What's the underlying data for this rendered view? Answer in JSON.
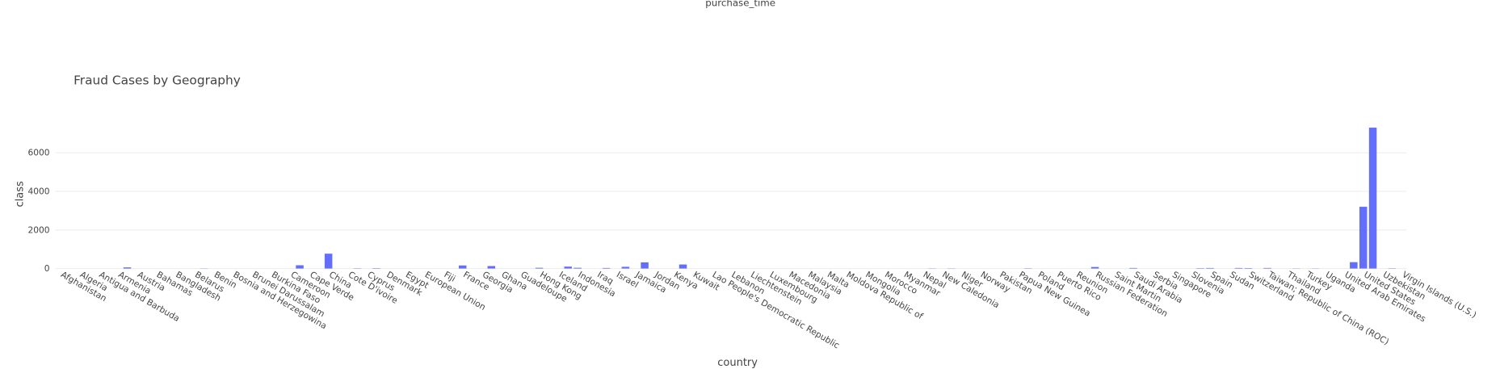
{
  "chart_data": {
    "type": "bar",
    "title": "Fraud Cases by Geography",
    "top_label": "purchase_time",
    "x_label": "country",
    "y_label": "class",
    "color": "#636efa",
    "grid": true,
    "ylim": [
      0,
      7670
    ],
    "yticks": [
      0,
      2000,
      4000,
      6000
    ],
    "categories": [
      "Afghanistan",
      null,
      "Algeria",
      null,
      "Antigua and Barbuda",
      null,
      "Armenia",
      null,
      "Austria",
      null,
      "Bahamas",
      null,
      "Bangladesh",
      null,
      "Belarus",
      null,
      "Benin",
      null,
      "Bosnia and Herzegowina",
      null,
      "Brunei Darussalam",
      null,
      "Burkina Faso",
      null,
      "Cameroon",
      null,
      "Cape Verde",
      null,
      "China",
      null,
      "Cote D'ivoire",
      null,
      "Cyprus",
      null,
      "Denmark",
      null,
      "Egypt",
      null,
      "European Union",
      null,
      "Fiji",
      null,
      "France",
      null,
      "Georgia",
      null,
      "Ghana",
      null,
      "Guadeloupe",
      null,
      "Hong Kong",
      null,
      "Iceland",
      null,
      "Indonesia",
      null,
      "Iraq",
      null,
      "Israel",
      null,
      "Jamaica",
      null,
      "Jordan",
      null,
      "Kenya",
      null,
      "Kuwait",
      null,
      "Lao People's Democratic Republic",
      null,
      "Lebanon",
      null,
      "Liechtenstein",
      null,
      "Luxembourg",
      null,
      "Macedonia",
      null,
      "Malaysia",
      null,
      "Malta",
      null,
      "Moldova Republic of",
      null,
      "Mongolia",
      null,
      "Morocco",
      null,
      "Myanmar",
      null,
      "Nepal",
      null,
      "New Caledonia",
      null,
      "Niger",
      null,
      "Norway",
      null,
      "Pakistan",
      null,
      "Papua New Guinea",
      null,
      "Poland",
      null,
      "Puerto Rico",
      null,
      "Reunion",
      null,
      "Russian Federation",
      null,
      "Saint Martin",
      null,
      "Saudi Arabia",
      null,
      "Serbia",
      null,
      "Singapore",
      null,
      "Slovenia",
      null,
      "Spain",
      null,
      "Sudan",
      null,
      "Switzerland",
      null,
      "Taiwan; Republic of China (ROC)",
      null,
      "Thailand",
      null,
      "Turkey",
      null,
      "Uganda",
      null,
      "United Arab Emirates",
      null,
      "United States",
      null,
      "Uzbekistan",
      null,
      "Virgin Islands (U.S.)"
    ],
    "values": [
      0,
      0,
      0,
      0,
      0,
      0,
      0,
      60,
      0,
      0,
      0,
      0,
      0,
      0,
      0,
      10,
      0,
      0,
      0,
      0,
      0,
      0,
      0,
      0,
      0,
      170,
      0,
      0,
      770,
      0,
      0,
      15,
      0,
      20,
      0,
      0,
      0,
      0,
      0,
      0,
      0,
      0,
      160,
      0,
      0,
      130,
      0,
      0,
      0,
      0,
      40,
      0,
      0,
      100,
      40,
      0,
      0,
      30,
      0,
      90,
      0,
      320,
      0,
      0,
      0,
      210,
      0,
      0,
      0,
      0,
      0,
      0,
      0,
      0,
      0,
      0,
      0,
      0,
      0,
      0,
      0,
      0,
      0,
      0,
      0,
      0,
      0,
      0,
      0,
      0,
      0,
      10,
      0,
      10,
      0,
      0,
      0,
      0,
      0,
      0,
      0,
      15,
      0,
      0,
      0,
      0,
      0,
      0,
      80,
      0,
      0,
      0,
      30,
      0,
      0,
      0,
      0,
      0,
      0,
      20,
      30,
      0,
      0,
      30,
      25,
      0,
      30,
      0,
      0,
      10,
      0,
      10,
      0,
      0,
      0,
      330,
      3200,
      7300,
      0,
      15,
      0
    ]
  }
}
